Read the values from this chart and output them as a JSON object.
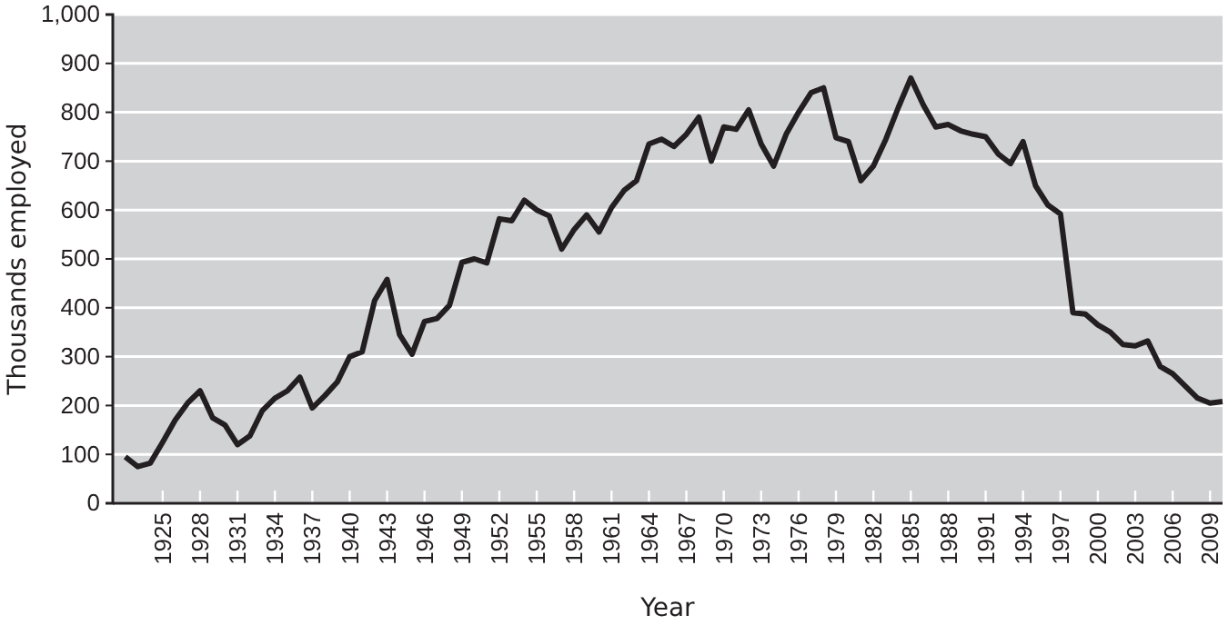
{
  "chart_data": {
    "type": "line",
    "xlabel": "Year",
    "ylabel": "Thousands employed",
    "x": [
      1922,
      1923,
      1924,
      1925,
      1926,
      1927,
      1928,
      1929,
      1930,
      1931,
      1932,
      1933,
      1934,
      1935,
      1936,
      1937,
      1938,
      1939,
      1940,
      1941,
      1942,
      1943,
      1944,
      1945,
      1946,
      1947,
      1948,
      1949,
      1950,
      1951,
      1952,
      1953,
      1954,
      1955,
      1956,
      1957,
      1958,
      1959,
      1960,
      1961,
      1962,
      1963,
      1964,
      1965,
      1966,
      1967,
      1968,
      1969,
      1970,
      1971,
      1972,
      1973,
      1974,
      1975,
      1976,
      1977,
      1978,
      1979,
      1980,
      1981,
      1982,
      1983,
      1984,
      1985,
      1986,
      1987,
      1988,
      1989,
      1990,
      1991,
      1992,
      1993,
      1994,
      1995,
      1996,
      1997,
      1998,
      1999,
      2000,
      2001,
      2002,
      2003,
      2004,
      2005,
      2006,
      2007,
      2008,
      2009,
      2010
    ],
    "series": [
      {
        "color": "#231f20",
        "values": [
          95,
          75,
          82,
          125,
          170,
          205,
          230,
          175,
          160,
          120,
          138,
          190,
          215,
          230,
          258,
          195,
          220,
          248,
          300,
          310,
          415,
          458,
          345,
          305,
          372,
          378,
          405,
          493,
          500,
          492,
          582,
          578,
          620,
          600,
          588,
          520,
          560,
          590,
          555,
          605,
          640,
          660,
          735,
          745,
          730,
          755,
          790,
          700,
          770,
          765,
          805,
          735,
          690,
          755,
          800,
          840,
          850,
          748,
          740,
          660,
          690,
          745,
          810,
          870,
          815,
          770,
          775,
          762,
          755,
          750,
          715,
          695,
          740,
          650,
          610,
          592,
          390,
          387,
          365,
          350,
          325,
          322,
          332,
          280,
          265,
          240,
          215,
          205,
          208
        ]
      }
    ],
    "xlim": [
      1921,
      2010
    ],
    "xticks": [
      1925,
      1928,
      1931,
      1934,
      1937,
      1940,
      1943,
      1946,
      1949,
      1952,
      1955,
      1958,
      1961,
      1964,
      1967,
      1970,
      1973,
      1976,
      1979,
      1982,
      1985,
      1988,
      1991,
      1994,
      1997,
      2000,
      2003,
      2006,
      2009
    ],
    "ylim": [
      0,
      1000
    ],
    "yticks": [
      0,
      100,
      200,
      300,
      400,
      500,
      600,
      700,
      800,
      900,
      {
        "value": 1000,
        "label": "1,000"
      }
    ],
    "grid": "y",
    "marker": "none",
    "line_style": "solid"
  }
}
